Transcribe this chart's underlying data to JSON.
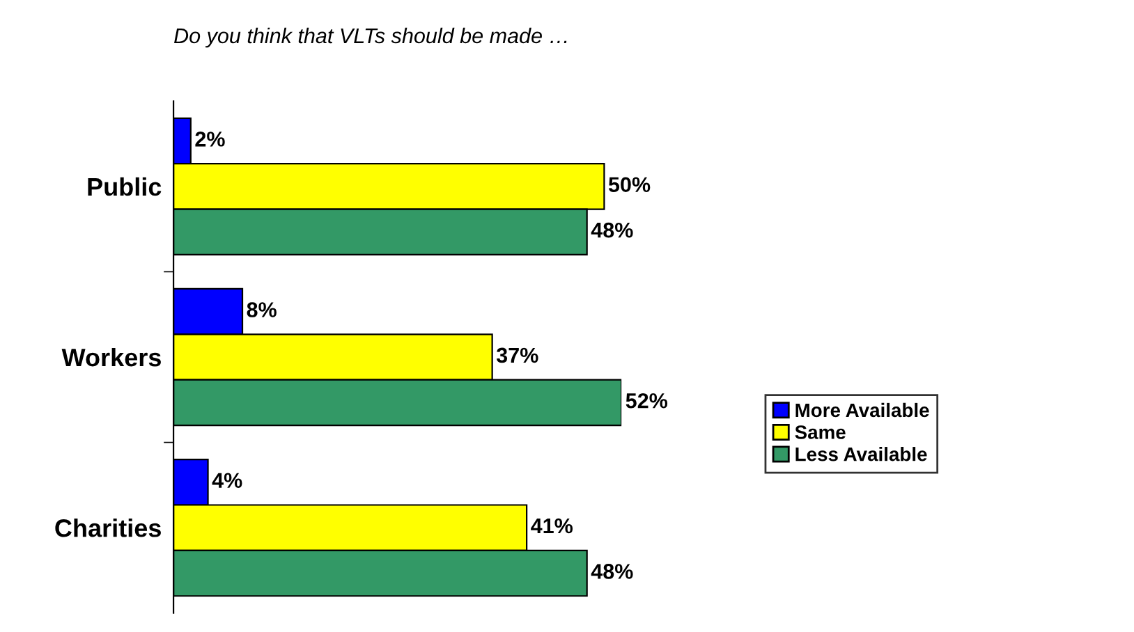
{
  "chart_data": {
    "type": "bar",
    "orientation": "horizontal",
    "title": "Do you think that VLTs should be made …",
    "categories": [
      "Public",
      "Workers",
      "Charities"
    ],
    "series": [
      {
        "name": "More Available",
        "color": "#0000ff",
        "values": [
          2,
          8,
          4
        ],
        "value_labels": [
          "2%",
          "8%",
          "4%"
        ]
      },
      {
        "name": "Same",
        "color": "#ffff00",
        "values": [
          50,
          37,
          41
        ],
        "value_labels": [
          "50%",
          "37%",
          "41%"
        ]
      },
      {
        "name": "Less Available",
        "color": "#339966",
        "values": [
          48,
          52,
          48
        ],
        "value_labels": [
          "48%",
          "52%",
          "48%"
        ]
      }
    ],
    "legend": "right",
    "grid": false
  }
}
